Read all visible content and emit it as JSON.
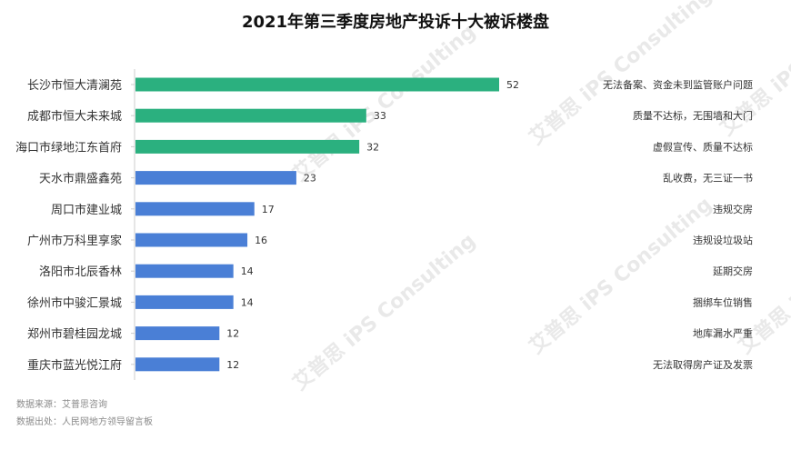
{
  "title": "2021年第三季度房地产投诉十大被诉楼盘",
  "chart_data": {
    "type": "bar",
    "orientation": "horizontal",
    "title": "2021年第三季度房地产投诉十大被诉楼盘",
    "categories": [
      "长沙市恒大清澜苑",
      "成都市恒大未来城",
      "海口市绿地江东首府",
      "天水市鼎盛鑫苑",
      "周口市建业城",
      "广州市万科里享家",
      "洛阳市北辰香林",
      "徐州市中骏汇景城",
      "郑州市碧桂园龙城",
      "重庆市蓝光悦江府"
    ],
    "values": [
      52,
      33,
      32,
      23,
      17,
      16,
      14,
      14,
      12,
      12
    ],
    "issues": [
      "无法备案、资金未到监管账户问题",
      "质量不达标，无围墙和大门",
      "虚假宣传、质量不达标",
      "乱收费，无三证一书",
      "违规交房",
      "违规设垃圾站",
      "延期交房",
      "捆绑车位销售",
      "地库漏水严重",
      "无法取得房产证及发票"
    ],
    "bar_colors": [
      "#2bb07f",
      "#2bb07f",
      "#2bb07f",
      "#4a7fd6",
      "#4a7fd6",
      "#4a7fd6",
      "#4a7fd6",
      "#4a7fd6",
      "#4a7fd6",
      "#4a7fd6"
    ],
    "xlim": [
      0,
      52
    ],
    "grid": false,
    "legend": "none"
  },
  "watermark": "艾普思 iPS Consulting",
  "source": {
    "line1": "数据来源：艾普思咨询",
    "line2": "数据出处：人民网地方领导留言板"
  }
}
